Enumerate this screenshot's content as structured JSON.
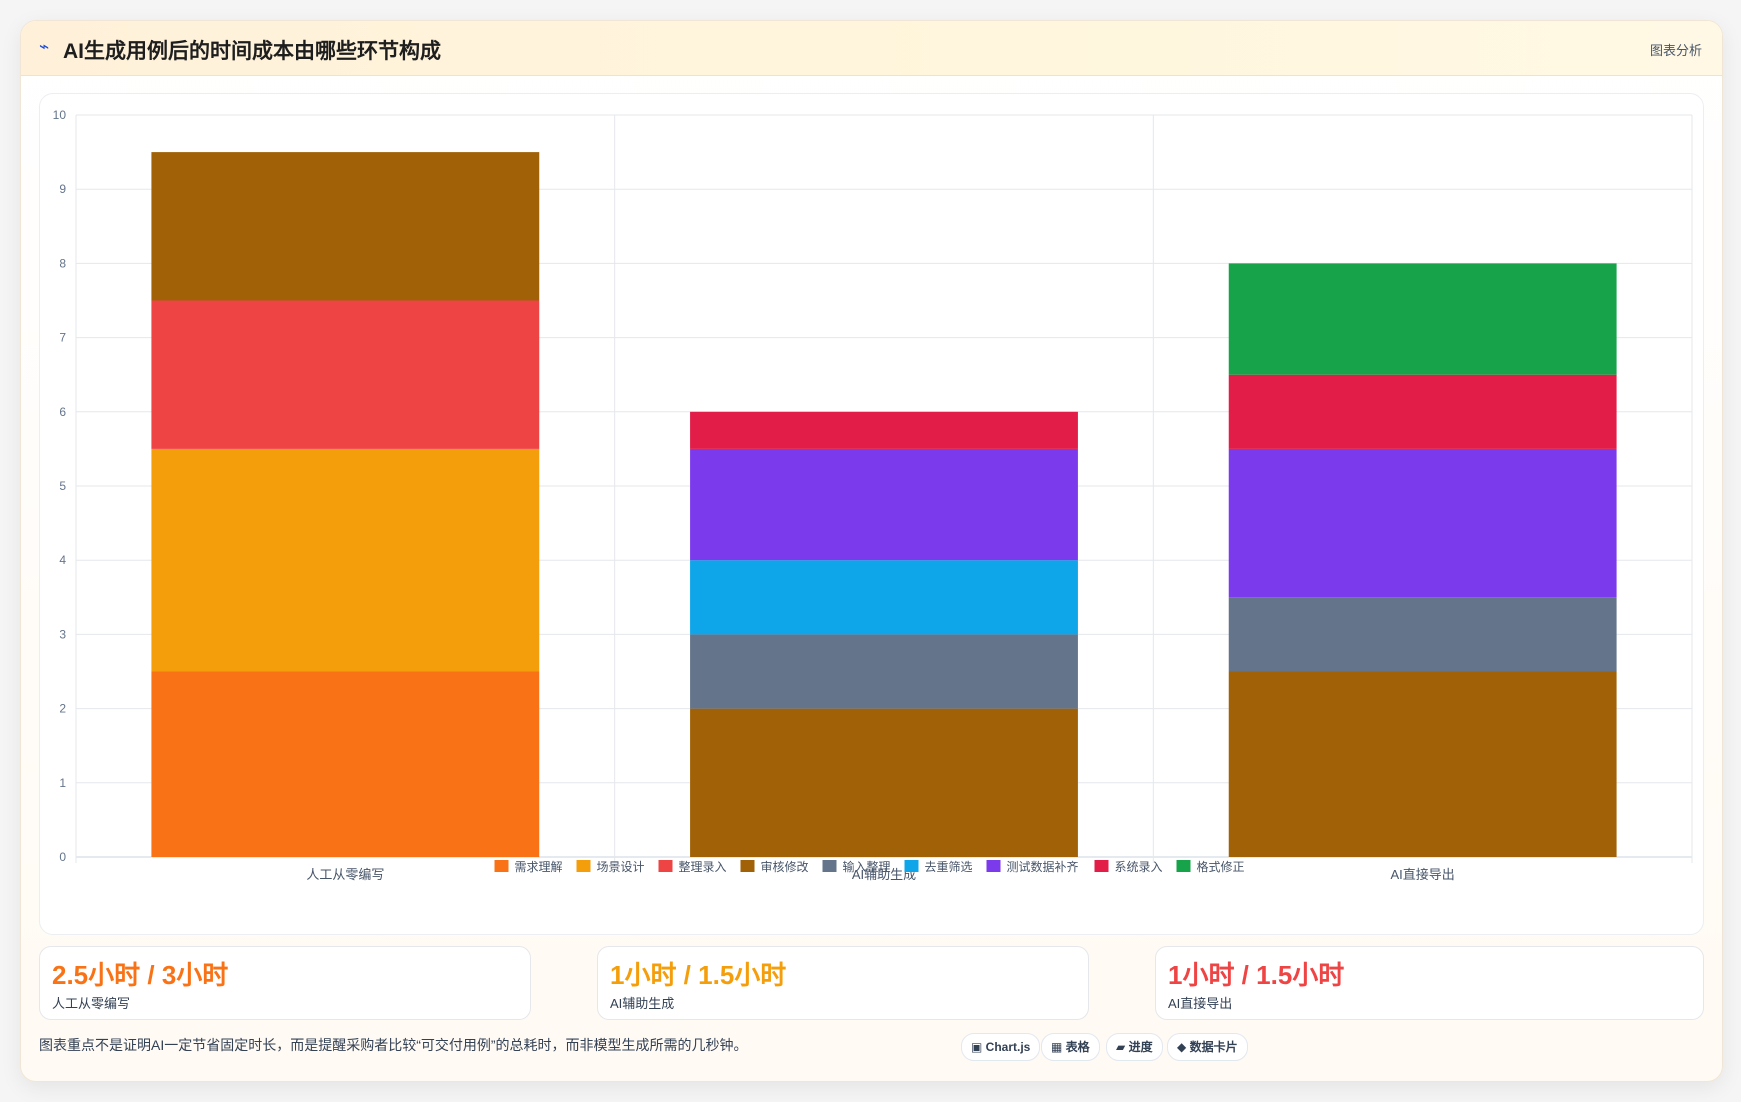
{
  "header": {
    "icon": "lightning-icon",
    "title": "AI生成用例后的时间成本由哪些环节构成",
    "tag": "图表分析"
  },
  "chart_data": {
    "type": "bar",
    "stacked": true,
    "categories": [
      "人工从零编写",
      "AI辅助生成",
      "AI直接导出"
    ],
    "ylim": [
      0,
      10
    ],
    "yticks": [
      0,
      1,
      2,
      3,
      4,
      5,
      6,
      7,
      8,
      9,
      10
    ],
    "legend_position": "bottom",
    "grid": true,
    "series": [
      {
        "name": "需求理解",
        "color": "#f97316",
        "values": [
          2.5,
          0,
          0
        ]
      },
      {
        "name": "场景设计",
        "color": "#f59e0b",
        "values": [
          3,
          0,
          0
        ]
      },
      {
        "name": "整理录入",
        "color": "#ef4444",
        "values": [
          2,
          0,
          0
        ]
      },
      {
        "name": "审核修改",
        "color": "#a16207",
        "values": [
          2,
          2,
          2.5
        ]
      },
      {
        "name": "输入整理",
        "color": "#64748b",
        "values": [
          0,
          1,
          1
        ]
      },
      {
        "name": "去重筛选",
        "color": "#0ea5e9",
        "values": [
          0,
          1,
          0
        ]
      },
      {
        "name": "测试数据补齐",
        "color": "#7c3aed",
        "values": [
          0,
          1.5,
          2
        ]
      },
      {
        "name": "系统录入",
        "color": "#e11d48",
        "values": [
          0,
          0.5,
          1
        ]
      },
      {
        "name": "格式修正",
        "color": "#16a34a",
        "values": [
          0,
          0,
          1.5
        ]
      }
    ]
  },
  "kpis": [
    {
      "value": "2.5小时 / 3小时",
      "label": "人工从零编写",
      "color": "#f97316"
    },
    {
      "value": "1小时 / 1.5小时",
      "label": "AI辅助生成",
      "color": "#f59e0b"
    },
    {
      "value": "1小时 / 1.5小时",
      "label": "AI直接导出",
      "color": "#ef4444"
    }
  ],
  "footer": {
    "note": "图表重点不是证明AI一定节省固定时长，而是提醒采购者比较“可交付用例”的总耗时，而非模型生成所需的几秒钟。",
    "badges": [
      "▣ Chart.js",
      "▦ 表格",
      "▰ 进度",
      "◆ 数据卡片"
    ]
  }
}
